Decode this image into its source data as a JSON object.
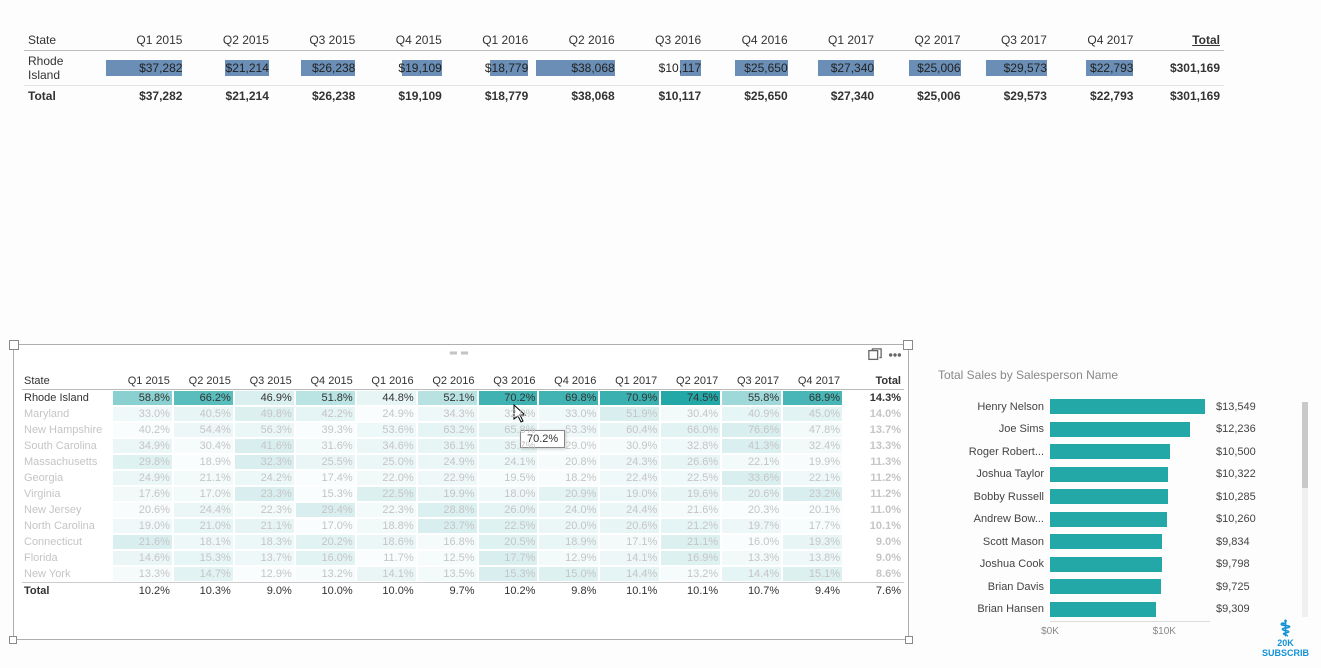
{
  "quarters": [
    "Q1 2015",
    "Q2 2015",
    "Q3 2015",
    "Q4 2015",
    "Q1 2016",
    "Q2 2016",
    "Q3 2016",
    "Q4 2016",
    "Q1 2017",
    "Q2 2017",
    "Q3 2017",
    "Q4 2017"
  ],
  "state_header": "State",
  "total_header": "Total",
  "revenue_matrix": {
    "bar_color": "#6a8eb5",
    "max_value": 38068,
    "row": {
      "state": "Rhode Island",
      "values": [
        37282,
        21214,
        26238,
        19109,
        18779,
        38068,
        10117,
        25650,
        27340,
        25006,
        29573,
        22793
      ],
      "total": 301169
    },
    "total_row": {
      "label": "Total",
      "values": [
        37282,
        21214,
        26238,
        19109,
        18779,
        38068,
        10117,
        25650,
        27340,
        25006,
        29573,
        22793
      ],
      "total": 301169
    }
  },
  "pct_matrix": {
    "highlight_color_max": "#23a7a7",
    "highlight_color_min": "#e8f5f5",
    "dim_color_max": "#d9efef",
    "dim_color_min": "#fafdfd",
    "tooltip": "70.2%",
    "tooltip_cell": {
      "row": 0,
      "col": 6
    },
    "rows": [
      {
        "state": "Rhode Island",
        "highlight": true,
        "values": [
          58.8,
          66.2,
          46.9,
          51.8,
          44.8,
          52.1,
          70.2,
          69.8,
          70.9,
          74.5,
          55.8,
          68.9
        ],
        "total": 14.3
      },
      {
        "state": "Maryland",
        "highlight": false,
        "values": [
          33.0,
          40.5,
          49.8,
          42.2,
          24.9,
          34.3,
          32.0,
          33.0,
          51.9,
          30.4,
          40.9,
          45.0
        ],
        "total": 14.0
      },
      {
        "state": "New Hampshire",
        "highlight": false,
        "values": [
          40.2,
          54.4,
          56.3,
          39.3,
          53.6,
          63.2,
          65.8,
          53.3,
          60.4,
          66.0,
          76.6,
          47.8
        ],
        "total": 13.7
      },
      {
        "state": "South Carolina",
        "highlight": false,
        "values": [
          34.9,
          30.4,
          41.6,
          31.6,
          34.6,
          36.1,
          35.7,
          29.0,
          30.9,
          32.8,
          41.3,
          32.4
        ],
        "total": 13.3
      },
      {
        "state": "Massachusetts",
        "highlight": false,
        "values": [
          29.8,
          18.9,
          32.3,
          25.5,
          25.0,
          24.9,
          24.1,
          20.8,
          24.3,
          26.6,
          22.1,
          19.9
        ],
        "total": 11.3
      },
      {
        "state": "Georgia",
        "highlight": false,
        "values": [
          24.9,
          21.1,
          24.2,
          17.4,
          22.0,
          22.9,
          19.5,
          18.2,
          22.4,
          22.5,
          33.6,
          22.1
        ],
        "total": 11.2
      },
      {
        "state": "Virginia",
        "highlight": false,
        "values": [
          17.6,
          17.0,
          23.3,
          15.3,
          22.5,
          19.9,
          18.0,
          20.9,
          19.0,
          19.6,
          20.6,
          23.2
        ],
        "total": 11.2
      },
      {
        "state": "New Jersey",
        "highlight": false,
        "values": [
          20.6,
          24.4,
          22.3,
          29.4,
          22.3,
          28.8,
          26.0,
          24.0,
          24.4,
          21.6,
          20.3,
          20.1
        ],
        "total": 11.0
      },
      {
        "state": "North Carolina",
        "highlight": false,
        "values": [
          19.0,
          21.0,
          21.1,
          17.0,
          18.8,
          23.7,
          22.5,
          20.0,
          20.6,
          21.2,
          19.7,
          17.7
        ],
        "total": 10.1
      },
      {
        "state": "Connecticut",
        "highlight": false,
        "values": [
          21.6,
          18.1,
          18.3,
          20.2,
          18.6,
          16.8,
          20.5,
          18.9,
          17.1,
          21.1,
          16.0,
          19.3
        ],
        "total": 9.0
      },
      {
        "state": "Florida",
        "highlight": false,
        "values": [
          14.6,
          15.3,
          13.7,
          16.0,
          11.7,
          12.5,
          17.7,
          12.9,
          14.1,
          16.9,
          13.3,
          13.8
        ],
        "total": 9.0
      },
      {
        "state": "New York",
        "highlight": false,
        "values": [
          13.3,
          14.7,
          12.9,
          13.2,
          14.1,
          13.5,
          15.3,
          15.0,
          14.4,
          13.2,
          14.4,
          15.1
        ],
        "total": 8.6
      }
    ],
    "total_row": {
      "label": "Total",
      "values": [
        10.2,
        10.3,
        9.0,
        10.0,
        10.0,
        9.7,
        10.2,
        9.8,
        10.1,
        10.1,
        10.7,
        9.4
      ],
      "total": 7.6
    }
  },
  "bar_chart": {
    "title": "Total Sales by Salesperson Name",
    "bar_color": "#23a7a7",
    "axis_ticks": [
      {
        "pos": 0,
        "label": "$0K"
      },
      {
        "pos": 10000,
        "label": "$10K"
      }
    ],
    "max_domain": 14000,
    "rows": [
      {
        "name": "Henry Nelson",
        "value": 13549,
        "label": "$13,549"
      },
      {
        "name": "Joe Sims",
        "value": 12236,
        "label": "$12,236"
      },
      {
        "name": "Roger Robert...",
        "value": 10500,
        "label": "$10,500"
      },
      {
        "name": "Joshua Taylor",
        "value": 10322,
        "label": "$10,322"
      },
      {
        "name": "Bobby Russell",
        "value": 10285,
        "label": "$10,285"
      },
      {
        "name": "Andrew Bow...",
        "value": 10260,
        "label": "$10,260"
      },
      {
        "name": "Scott Mason",
        "value": 9834,
        "label": "$9,834"
      },
      {
        "name": "Joshua Cook",
        "value": 9798,
        "label": "$9,798"
      },
      {
        "name": "Brian Davis",
        "value": 9725,
        "label": "$9,725"
      },
      {
        "name": "Brian Hansen",
        "value": 9309,
        "label": "$9,309"
      }
    ]
  },
  "watermark": {
    "line1": "20K",
    "line2": "SUBSCRIB"
  }
}
